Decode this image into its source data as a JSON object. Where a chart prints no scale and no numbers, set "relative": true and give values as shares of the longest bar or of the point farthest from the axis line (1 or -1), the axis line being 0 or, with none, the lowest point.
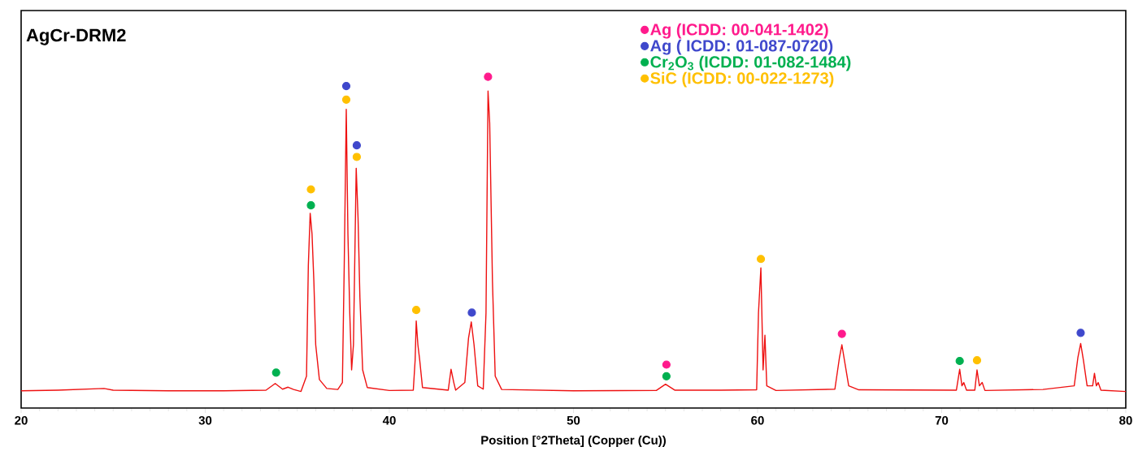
{
  "chart_data": {
    "type": "line",
    "relative": true,
    "title": "AgCr-DRM2",
    "xlabel": "Position [°2Theta] (Copper (Cu))",
    "xlim": [
      20,
      80
    ],
    "xticks": [
      20,
      30,
      40,
      50,
      60,
      70,
      80
    ],
    "legend": "top right",
    "grid": false,
    "series": [
      {
        "color": "#ee1111",
        "marker": "none",
        "x": [
          20,
          22,
          24.5,
          25,
          28,
          31,
          33.3,
          33.8,
          34.2,
          34.5,
          34.8,
          35.2,
          35.5,
          35.6,
          35.7,
          35.8,
          35.9,
          36.0,
          36.2,
          36.6,
          37.2,
          37.45,
          37.55,
          37.66,
          37.75,
          37.85,
          37.95,
          38.05,
          38.2,
          38.3,
          38.4,
          38.55,
          38.8,
          40,
          41.3,
          41.4,
          41.46,
          41.55,
          41.65,
          41.8,
          43.2,
          43.35,
          43.5,
          43.6,
          44.1,
          44.3,
          44.45,
          44.6,
          44.8,
          45.1,
          45.25,
          45.36,
          45.45,
          45.6,
          45.75,
          46.1,
          50,
          54.5,
          55.0,
          55.5,
          58,
          59.95,
          60.05,
          60.18,
          60.3,
          60.4,
          60.5,
          61,
          64.2,
          64.45,
          64.58,
          64.75,
          64.95,
          65.5,
          70.8,
          70.98,
          71.1,
          71.2,
          71.35,
          71.8,
          71.92,
          72.05,
          72.2,
          72.35,
          75.5,
          77.2,
          77.4,
          77.55,
          77.7,
          77.9,
          78.2,
          78.3,
          78.4,
          78.5,
          78.65,
          80
        ],
        "values": [
          0.052,
          0.054,
          0.059,
          0.054,
          0.052,
          0.052,
          0.054,
          0.074,
          0.057,
          0.063,
          0.056,
          0.05,
          0.096,
          0.431,
          0.588,
          0.526,
          0.383,
          0.191,
          0.086,
          0.059,
          0.056,
          0.077,
          0.431,
          0.902,
          0.526,
          0.287,
          0.115,
          0.191,
          0.724,
          0.574,
          0.335,
          0.115,
          0.062,
          0.053,
          0.054,
          0.144,
          0.263,
          0.191,
          0.144,
          0.062,
          0.054,
          0.117,
          0.077,
          0.054,
          0.077,
          0.211,
          0.26,
          0.191,
          0.067,
          0.057,
          0.287,
          0.957,
          0.861,
          0.383,
          0.096,
          0.056,
          0.052,
          0.053,
          0.072,
          0.054,
          0.054,
          0.055,
          0.287,
          0.423,
          0.115,
          0.22,
          0.067,
          0.053,
          0.057,
          0.153,
          0.191,
          0.134,
          0.067,
          0.055,
          0.054,
          0.117,
          0.067,
          0.077,
          0.054,
          0.054,
          0.115,
          0.067,
          0.077,
          0.053,
          0.056,
          0.067,
          0.153,
          0.195,
          0.144,
          0.067,
          0.067,
          0.105,
          0.067,
          0.077,
          0.054,
          0.05
        ]
      },
      {
        "type": "scatter",
        "name": "Ag (ICDD: 00-041-1402)",
        "color": "#ff1a8c",
        "marker": "circle",
        "x": [
          45.36,
          55.05,
          64.58
        ],
        "values": [
          1,
          0.131,
          0.224
        ]
      },
      {
        "type": "scatter",
        "name": "Ag ( ICDD: 01-087-0720)",
        "color": "#3f48cc",
        "marker": "circle",
        "x": [
          37.66,
          38.23,
          44.48,
          77.55
        ],
        "values": [
          0.972,
          0.793,
          0.288,
          0.227
        ]
      },
      {
        "type": "scatter",
        "name": "Cr$_{2}$O$_{3}$ (ICDD: 01-082-1484)",
        "color": "#00b050",
        "marker": "circle",
        "x": [
          33.85,
          35.74,
          55.05,
          70.98
        ],
        "values": [
          0.107,
          0.612,
          0.096,
          0.142
        ]
      },
      {
        "type": "scatter",
        "name": "SiC (ICDD: 00-022-1273)",
        "color": "#ffc000",
        "marker": "circle",
        "x": [
          35.74,
          37.66,
          38.23,
          41.46,
          60.18,
          71.92
        ],
        "values": [
          0.66,
          0.931,
          0.758,
          0.296,
          0.45,
          0.144
        ]
      }
    ]
  }
}
